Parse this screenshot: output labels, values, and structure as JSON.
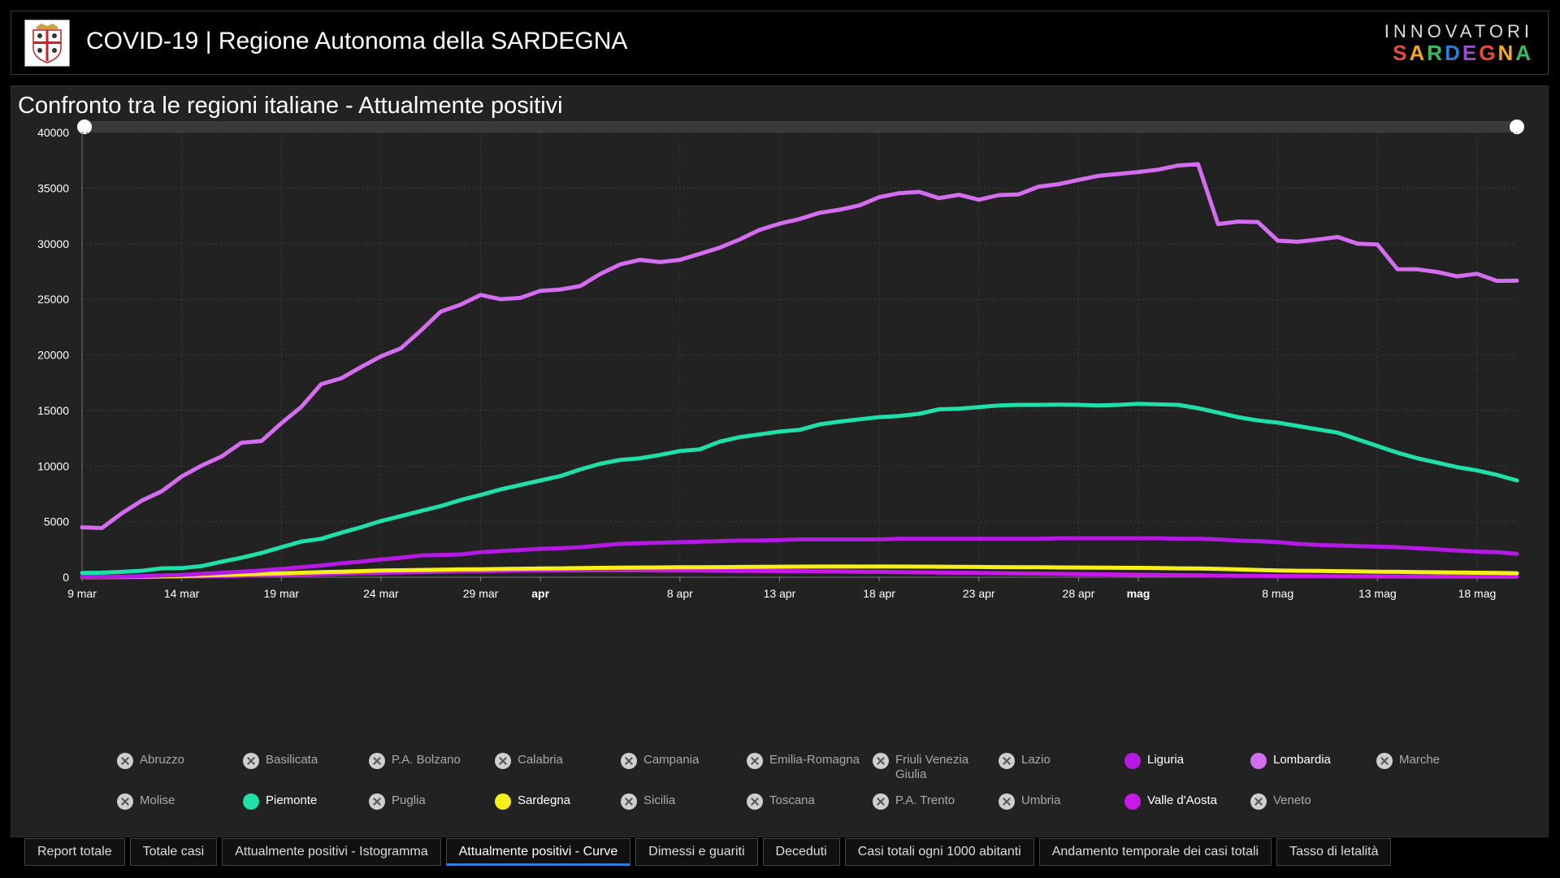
{
  "header": {
    "title": "COVID-19 | Regione Autonoma della SARDEGNA",
    "brand_line1": "INNOVATORI",
    "brand_line2": "SARDEGNA",
    "brand_colors": [
      "#e94b3c",
      "#f5a623",
      "#3dbb5f",
      "#2f7fd8",
      "#9b4dca",
      "#e94b3c",
      "#f5a623",
      "#3dbb5f"
    ]
  },
  "panel": {
    "title": "Confronto tra le regioni italiane - Attualmente positivi"
  },
  "chart_data": {
    "type": "line",
    "x_start": "9 mar",
    "x_ticks": [
      "9 mar",
      "14 mar",
      "19 mar",
      "24 mar",
      "29 mar",
      "apr",
      "8 apr",
      "13 apr",
      "18 apr",
      "23 apr",
      "28 apr",
      "mag",
      "8 mag",
      "13 mag",
      "18 mag"
    ],
    "x_tick_days": [
      0,
      5,
      10,
      15,
      20,
      23,
      30,
      35,
      40,
      45,
      50,
      53,
      60,
      65,
      70
    ],
    "bold_ticks": [
      "apr",
      "mag"
    ],
    "y_ticks": [
      "0",
      "5000",
      "10000",
      "15000",
      "20000",
      "25000",
      "30000",
      "35000",
      "40000"
    ],
    "ylim": [
      0,
      40000
    ],
    "series": [
      {
        "name": "Lombardia",
        "color": "#d56df0",
        "values": [
          4490,
          4427,
          5763,
          6896,
          7732,
          9059,
          10043,
          10861,
          12095,
          12248,
          13852,
          15319,
          17370,
          17885,
          18910,
          19868,
          20591,
          22189,
          23895,
          24509,
          25392,
          25006,
          25123,
          25765,
          25876,
          26184,
          27278,
          28142,
          28545,
          28343,
          28545,
          29092,
          29647,
          30385,
          31243,
          31806,
          32223,
          32772,
          33053,
          33443,
          34176,
          34545,
          34664,
          34102,
          34402,
          33950,
          34368,
          34435,
          35133,
          35353,
          35737,
          36103,
          36274,
          36449,
          36660,
          37032,
          37153,
          31768,
          31984,
          31950,
          30273,
          30171,
          30367,
          30606,
          30006,
          29929,
          27706,
          27690,
          27448,
          27065,
          27290,
          26652,
          26678
        ]
      },
      {
        "name": "Piemonte",
        "color": "#1ee0a8",
        "values": [
          380,
          410,
          480,
          580,
          800,
          820,
          1000,
          1400,
          1750,
          2180,
          2700,
          3200,
          3450,
          4000,
          4500,
          5050,
          5500,
          5950,
          6400,
          6950,
          7400,
          7900,
          8300,
          8700,
          9100,
          9700,
          10200,
          10550,
          10700,
          11000,
          11350,
          11500,
          12200,
          12600,
          12850,
          13100,
          13250,
          13750,
          14000,
          14200,
          14400,
          14500,
          14700,
          15100,
          15150,
          15300,
          15450,
          15500,
          15500,
          15520,
          15500,
          15450,
          15500,
          15600,
          15550,
          15500,
          15200,
          14800,
          14400,
          14100,
          13900,
          13600,
          13300,
          13000,
          12400,
          11800,
          11200,
          10700,
          10300,
          9900,
          9600,
          9200,
          8700
        ]
      },
      {
        "name": "Liguria",
        "color": "#b41ae3",
        "values": [
          20,
          30,
          50,
          100,
          150,
          200,
          300,
          400,
          500,
          600,
          750,
          900,
          1050,
          1250,
          1400,
          1600,
          1750,
          1950,
          2000,
          2050,
          2250,
          2350,
          2450,
          2550,
          2600,
          2700,
          2850,
          3000,
          3050,
          3100,
          3150,
          3200,
          3250,
          3300,
          3300,
          3350,
          3400,
          3400,
          3400,
          3400,
          3400,
          3450,
          3450,
          3450,
          3450,
          3450,
          3450,
          3450,
          3450,
          3500,
          3500,
          3500,
          3500,
          3500,
          3500,
          3450,
          3450,
          3400,
          3300,
          3250,
          3150,
          3000,
          2900,
          2850,
          2800,
          2750,
          2700,
          2600,
          2500,
          2400,
          2300,
          2250,
          2100
        ]
      },
      {
        "name": "Sardegna",
        "color": "#f7ef1b",
        "values": [
          10,
          20,
          30,
          50,
          80,
          110,
          150,
          200,
          250,
          300,
          350,
          400,
          450,
          500,
          550,
          600,
          620,
          650,
          680,
          700,
          720,
          740,
          760,
          780,
          800,
          820,
          840,
          860,
          870,
          880,
          890,
          900,
          910,
          920,
          930,
          940,
          950,
          960,
          960,
          960,
          960,
          960,
          950,
          940,
          930,
          920,
          910,
          900,
          890,
          880,
          870,
          860,
          850,
          840,
          820,
          800,
          780,
          750,
          700,
          650,
          600,
          580,
          560,
          540,
          520,
          500,
          480,
          460,
          440,
          420,
          400,
          380,
          360
        ]
      },
      {
        "name": "Valle d'Aosta",
        "color": "#c819e8",
        "values": [
          0,
          5,
          10,
          20,
          40,
          60,
          80,
          100,
          130,
          160,
          200,
          240,
          280,
          320,
          360,
          400,
          430,
          460,
          490,
          520,
          550,
          570,
          590,
          600,
          610,
          620,
          620,
          620,
          620,
          610,
          600,
          590,
          580,
          570,
          560,
          550,
          540,
          530,
          520,
          500,
          480,
          460,
          440,
          420,
          400,
          380,
          360,
          340,
          320,
          300,
          280,
          260,
          240,
          220,
          200,
          180,
          160,
          140,
          130,
          120,
          110,
          100,
          90,
          80,
          75,
          70,
          65,
          60,
          55,
          50,
          45,
          40,
          35
        ]
      }
    ],
    "legend_position": "bottom",
    "grid": true
  },
  "legend": [
    {
      "label": "Abruzzo",
      "active": false
    },
    {
      "label": "Basilicata",
      "active": false
    },
    {
      "label": "P.A. Bolzano",
      "active": false
    },
    {
      "label": "Calabria",
      "active": false
    },
    {
      "label": "Campania",
      "active": false
    },
    {
      "label": "Emilia-Romagna",
      "active": false
    },
    {
      "label": "Friuli Venezia Giulia",
      "active": false
    },
    {
      "label": "Lazio",
      "active": false
    },
    {
      "label": "Liguria",
      "active": true,
      "color": "#b41ae3"
    },
    {
      "label": "Lombardia",
      "active": true,
      "color": "#d56df0"
    },
    {
      "label": "Marche",
      "active": false
    },
    {
      "label": "Molise",
      "active": false
    },
    {
      "label": "Piemonte",
      "active": true,
      "color": "#1ee0a8"
    },
    {
      "label": "Puglia",
      "active": false
    },
    {
      "label": "Sardegna",
      "active": true,
      "color": "#f7ef1b"
    },
    {
      "label": "Sicilia",
      "active": false
    },
    {
      "label": "Toscana",
      "active": false
    },
    {
      "label": "P.A. Trento",
      "active": false
    },
    {
      "label": "Umbria",
      "active": false
    },
    {
      "label": "Valle d'Aosta",
      "active": true,
      "color": "#c819e8"
    },
    {
      "label": "Veneto",
      "active": false
    }
  ],
  "tabs": [
    {
      "label": "Report totale",
      "active": false
    },
    {
      "label": "Totale casi",
      "active": false
    },
    {
      "label": "Attualmente positivi - Istogramma",
      "active": false
    },
    {
      "label": "Attualmente positivi - Curve",
      "active": true
    },
    {
      "label": "Dimessi e guariti",
      "active": false
    },
    {
      "label": "Deceduti",
      "active": false
    },
    {
      "label": "Casi totali ogni 1000 abitanti",
      "active": false
    },
    {
      "label": "Andamento temporale dei casi totali",
      "active": false
    },
    {
      "label": "Tasso di letalità",
      "active": false
    }
  ]
}
